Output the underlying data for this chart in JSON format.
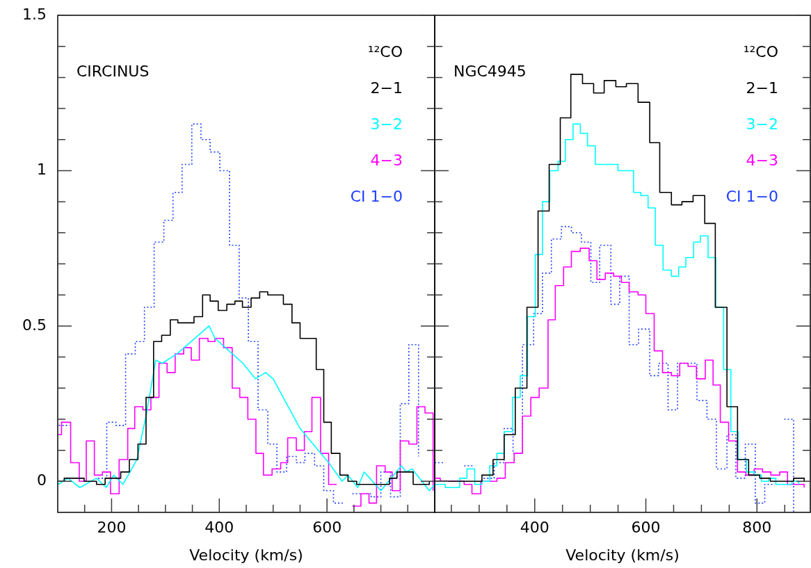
{
  "chart_data": [
    {
      "type": "step",
      "title": "CIRCINUS",
      "xlabel": "Velocity (km/s)",
      "legend_title": "¹²CO",
      "legend": "top right",
      "xlim": [
        100,
        800
      ],
      "ylim": [
        -0.1,
        1.5
      ],
      "xticks": [
        {
          "value": 150,
          "label": null
        },
        200,
        {
          "value": 250,
          "label": null
        },
        {
          "value": 300,
          "label": null
        },
        {
          "value": 350,
          "label": null
        },
        400,
        {
          "value": 450,
          "label": null
        },
        {
          "value": 500,
          "label": null
        },
        {
          "value": 550,
          "label": null
        },
        600,
        {
          "value": 650,
          "label": null
        },
        {
          "value": 700,
          "label": null
        },
        {
          "value": 750,
          "label": null
        }
      ],
      "yticks": [
        0,
        {
          "value": 0.1,
          "label": null
        },
        {
          "value": 0.2,
          "label": null
        },
        {
          "value": 0.3,
          "label": null
        },
        {
          "value": 0.4,
          "label": null
        },
        0.5,
        {
          "value": 0.6,
          "label": null
        },
        {
          "value": 0.7,
          "label": null
        },
        {
          "value": 0.8,
          "label": null
        },
        {
          "value": 0.9,
          "label": null
        },
        1,
        {
          "value": 1.1,
          "label": null
        },
        {
          "value": 1.2,
          "label": null
        },
        {
          "value": 1.3,
          "label": null
        },
        {
          "value": 1.4,
          "label": null
        },
        1.5
      ],
      "series": [
        {
          "name": "2−1",
          "color": "#000000",
          "type": "step",
          "x": [
            101,
            112,
            149,
            172,
            188,
            217,
            233,
            249,
            264,
            278,
            293,
            309,
            323,
            339,
            353,
            369,
            383,
            398,
            414,
            429,
            443,
            459,
            475,
            490,
            519,
            535,
            550,
            564,
            580,
            594,
            608,
            624,
            639,
            655,
            671,
            700,
            716,
            730,
            760,
            775,
            790
          ],
          "values": [
            0.0,
            0.01,
            0.0,
            -0.01,
            0.01,
            0.03,
            0.07,
            0.12,
            0.27,
            0.45,
            0.47,
            0.52,
            0.51,
            0.51,
            0.53,
            0.6,
            0.58,
            0.55,
            0.57,
            0.58,
            0.56,
            0.59,
            0.61,
            0.6,
            0.57,
            0.51,
            0.46,
            0.46,
            0.36,
            0.19,
            0.09,
            0.02,
            0.0,
            -0.01,
            -0.01,
            -0.01,
            0.01,
            0.03,
            -0.01,
            -0.01,
            0.0
          ]
        },
        {
          "name": "3−2",
          "color": "#00ffff",
          "type": "line",
          "x": [
            101,
            119,
            141,
            172,
            190,
            204,
            221,
            247,
            265,
            282,
            294,
            321,
            348,
            381,
            392,
            444,
            467,
            486,
            500,
            550,
            603,
            628,
            639,
            657,
            669,
            700,
            738,
            747,
            758,
            790,
            800
          ],
          "values": [
            -0.01,
            0.01,
            -0.02,
            0.01,
            -0.02,
            0.02,
            -0.01,
            0.07,
            0.22,
            0.39,
            0.38,
            0.41,
            0.45,
            0.5,
            0.46,
            0.38,
            0.33,
            0.35,
            0.33,
            0.17,
            0.06,
            0.0,
            0.02,
            -0.02,
            0.03,
            -0.03,
            0.05,
            0.03,
            0.04,
            -0.03,
            -0.01
          ]
        },
        {
          "name": "4−3",
          "color": "#ff00ff",
          "type": "step",
          "x": [
            101,
            107,
            124,
            140,
            153,
            168,
            183,
            198,
            214,
            230,
            243,
            258,
            273,
            288,
            303,
            318,
            334,
            348,
            363,
            379,
            392,
            408,
            424,
            438,
            453,
            468,
            482,
            498,
            514,
            527,
            543,
            558,
            572,
            588,
            603,
            618,
            633,
            647,
            663,
            678,
            692,
            708,
            721,
            736,
            752,
            767,
            782,
            797
          ],
          "values": [
            0.15,
            0.19,
            0.06,
            0.0,
            0.13,
            0.02,
            0.03,
            -0.04,
            0.07,
            0.17,
            0.24,
            0.23,
            0.27,
            0.38,
            0.35,
            0.41,
            0.43,
            0.39,
            0.46,
            0.45,
            0.46,
            0.43,
            0.3,
            0.27,
            0.2,
            0.09,
            0.02,
            0.04,
            0.06,
            0.14,
            0.1,
            0.16,
            0.27,
            0.09,
            -0.01,
            null,
            null,
            -0.08,
            -0.04,
            -0.07,
            0.05,
            0.03,
            -0.03,
            0.13,
            0.12,
            0.24,
            0.22,
            -0.03
          ]
        },
        {
          "name": "CI 1−0",
          "color": "#1f3fff",
          "type": "step",
          "line_style": "dotted",
          "x": [
            102,
            122,
            175,
            191,
            208,
            226,
            244,
            261,
            279,
            297,
            314,
            331,
            349,
            366,
            383,
            401,
            419,
            437,
            454,
            472,
            490,
            507,
            525,
            543,
            559,
            577,
            594,
            612,
            629,
            647,
            664,
            682,
            700,
            718,
            736,
            752,
            770
          ],
          "values": [
            0.18,
            null,
            0.01,
            0.19,
            0.18,
            0.41,
            0.45,
            0.56,
            0.77,
            0.84,
            0.93,
            1.02,
            1.15,
            1.1,
            1.06,
            1.0,
            0.76,
            0.59,
            0.45,
            0.23,
            0.12,
            0.03,
            0.08,
            0.06,
            0.09,
            0.05,
            -0.03,
            -0.07,
            null,
            -0.04,
            -0.04,
            -0.05,
            0.03,
            -0.05,
            0.25,
            0.44,
            0.08
          ]
        }
      ]
    },
    {
      "type": "step",
      "title": "NGC4945",
      "xlabel": "Velocity (km/s)",
      "legend_title": "¹²CO",
      "legend": "top right",
      "tick_labels": "x",
      "xlim": [
        220,
        896
      ],
      "ylim": [
        -0.1,
        1.5
      ],
      "xticks": [
        {
          "value": 250,
          "label": null
        },
        {
          "value": 300,
          "label": null
        },
        {
          "value": 350,
          "label": null
        },
        400,
        {
          "value": 450,
          "label": null
        },
        {
          "value": 500,
          "label": null
        },
        {
          "value": 550,
          "label": null
        },
        600,
        {
          "value": 650,
          "label": null
        },
        {
          "value": 700,
          "label": null
        },
        {
          "value": 750,
          "label": null
        },
        800,
        {
          "value": 850,
          "label": null
        }
      ],
      "yticks": [
        0,
        {
          "value": 0.1,
          "label": null
        },
        {
          "value": 0.2,
          "label": null
        },
        {
          "value": 0.3,
          "label": null
        },
        {
          "value": 0.4,
          "label": null
        },
        0.5,
        {
          "value": 0.6,
          "label": null
        },
        {
          "value": 0.7,
          "label": null
        },
        {
          "value": 0.8,
          "label": null
        },
        {
          "value": 0.9,
          "label": null
        },
        1,
        {
          "value": 1.1,
          "label": null
        },
        {
          "value": 1.2,
          "label": null
        },
        {
          "value": 1.3,
          "label": null
        },
        {
          "value": 1.4,
          "label": null
        },
        1.5
      ],
      "series": [
        {
          "name": "2−1",
          "color": "#000000",
          "type": "step",
          "x": [
            220,
            287,
            305,
            325,
            345,
            365,
            386,
            406,
            426,
            446,
            465,
            486,
            506,
            525,
            546,
            565,
            586,
            607,
            625,
            646,
            665,
            685,
            706,
            725,
            746,
            765,
            785,
            805,
            824,
            846,
            866,
            885
          ],
          "values": [
            0.0,
            0.0,
            0.02,
            0.07,
            0.15,
            0.3,
            0.56,
            0.87,
            1.02,
            1.17,
            1.31,
            1.28,
            1.25,
            1.29,
            1.27,
            1.28,
            1.22,
            1.09,
            0.93,
            0.89,
            0.9,
            0.92,
            0.83,
            0.56,
            0.24,
            0.07,
            0.02,
            0.01,
            0.0,
            0.0,
            0.01,
            0.0
          ]
        },
        {
          "name": "3−2",
          "color": "#00ffff",
          "type": "step",
          "x": [
            220,
            239,
            265,
            278,
            292,
            305,
            319,
            332,
            345,
            360,
            374,
            387,
            401,
            414,
            427,
            442,
            455,
            469,
            482,
            495,
            509,
            522,
            536,
            550,
            564,
            578,
            591,
            604,
            617,
            631,
            646,
            659,
            672,
            686,
            698,
            712,
            726,
            740,
            753,
            766,
            781,
            795,
            808,
            821,
            834,
            849,
            863,
            875
          ],
          "values": [
            -0.01,
            -0.02,
            0.01,
            0.04,
            -0.01,
            0.0,
            0.05,
            0.09,
            0.16,
            0.27,
            0.34,
            0.53,
            0.73,
            0.9,
            1.0,
            1.03,
            1.1,
            1.15,
            1.12,
            1.08,
            1.02,
            1.02,
            1.02,
            1.0,
            1.0,
            0.93,
            0.92,
            0.88,
            0.76,
            0.68,
            0.66,
            0.69,
            0.72,
            0.77,
            0.79,
            0.72,
            0.56,
            0.36,
            0.16,
            0.07,
            0.03,
            0.02,
            0.0,
            0.01,
            -0.01,
            -0.01,
            0.0,
            -0.01
          ]
        },
        {
          "name": "4−3",
          "color": "#ff00ff",
          "type": "step",
          "x": [
            220,
            230,
            273,
            287,
            303,
            317,
            332,
            347,
            363,
            378,
            393,
            408,
            424,
            437,
            452,
            466,
            482,
            498,
            512,
            527,
            542,
            556,
            570,
            586,
            600,
            615,
            630,
            646,
            661,
            676,
            691,
            707,
            721,
            734,
            749,
            765,
            780,
            795,
            810,
            825,
            841,
            855,
            870,
            885
          ],
          "values": [
            0.01,
            0.0,
            -0.01,
            -0.04,
            0.0,
            0.0,
            0.01,
            0.06,
            0.09,
            0.21,
            0.27,
            0.3,
            0.52,
            0.63,
            0.69,
            0.74,
            0.75,
            0.71,
            0.65,
            0.67,
            0.66,
            0.64,
            0.61,
            0.6,
            0.54,
            0.42,
            0.35,
            0.34,
            0.38,
            0.37,
            0.33,
            0.39,
            0.31,
            0.19,
            0.13,
            0.03,
            0.02,
            0.04,
            0.03,
            0.02,
            0.03,
            -0.01,
            -0.01,
            -0.02
          ]
        },
        {
          "name": "CI 1−0",
          "color": "#1f3fff",
          "type": "step",
          "line_style": "dotted",
          "x": [
            220,
            239,
            273,
            292,
            308,
            327,
            345,
            361,
            378,
            398,
            414,
            430,
            448,
            466,
            484,
            501,
            517,
            537,
            553,
            570,
            587,
            607,
            623,
            640,
            657,
            675,
            692,
            710,
            727,
            746,
            762,
            779,
            797,
            814,
            832,
            849,
            866
          ],
          "values": [
            0.06,
            null,
            0.05,
            null,
            0.01,
            0.06,
            0.17,
            0.09,
            0.44,
            0.54,
            0.67,
            0.78,
            0.82,
            0.8,
            0.77,
            0.64,
            0.76,
            0.57,
            0.66,
            0.44,
            0.49,
            0.34,
            0.38,
            0.23,
            0.38,
            0.38,
            0.26,
            0.2,
            0.04,
            0.15,
            0.01,
            0.12,
            -0.07,
            -0.01,
            null,
            0.2,
            -0.1
          ]
        }
      ]
    }
  ]
}
